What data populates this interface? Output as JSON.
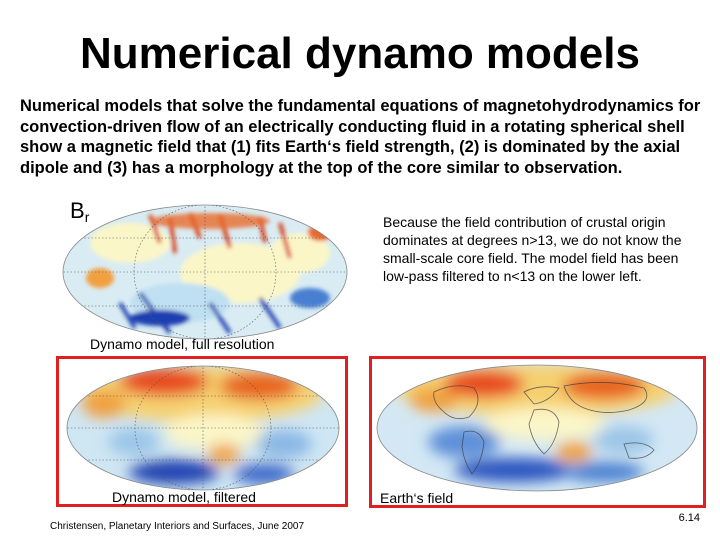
{
  "slide": {
    "title": "Numerical dynamo models",
    "intro": "Numerical models that solve the fundamental equations of magnetohydrodynamics for convection-driven flow of an electrically conducting fluid in a rotating spherical shell show a magnetic field that (1) fits Earth‘s field strength, (2) is dominated by the axial dipole and (3) has a morphology at the top of the core similar to observation.",
    "field_label": {
      "base": "B",
      "subscript": "r"
    },
    "note": "Because the field contribution of crustal origin dominates at degrees n>13, we do not know the small-scale core field.  The model field has been low-pass filtered to n<13 on the lower left.",
    "captions": {
      "full": "Dynamo model, full resolution",
      "filtered": "Dynamo model, filtered",
      "earth": "Earth‘s field"
    },
    "credit": "Christensen, Planetary Interiors and Surfaces, June 2007",
    "slide_number": "6.14"
  },
  "colors": {
    "frame": "#e02020",
    "field_positive": "#d83a16",
    "field_negative": "#1a3fb0",
    "field_zero": "#fbf6c8"
  },
  "maps": [
    "dynamo-full-resolution",
    "dynamo-filtered",
    "earth-field"
  ]
}
